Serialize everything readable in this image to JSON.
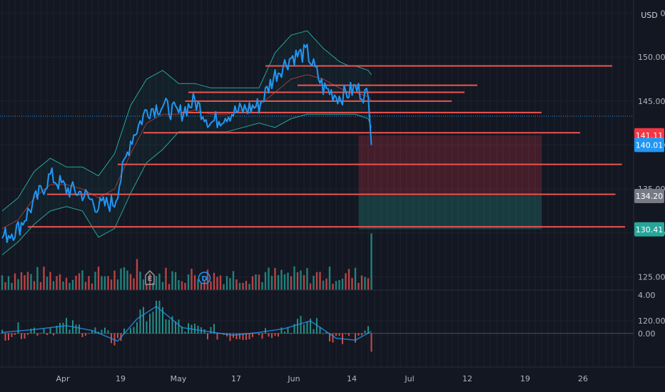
{
  "price_axis": {
    "currency": "USD",
    "ticks": [
      "155.00",
      "150.00",
      "145.00",
      "140.00",
      "135.00",
      "130.00",
      "125.00",
      "120.00"
    ],
    "tick_values": [
      155,
      150,
      145,
      140,
      135,
      130,
      125,
      120
    ]
  },
  "oscillator_axis": {
    "ticks": [
      "4.00",
      "0.00"
    ],
    "tick_values": [
      4,
      0
    ]
  },
  "time_axis": {
    "labels": [
      "Apr",
      "19",
      "May",
      "17",
      "Jun",
      "14",
      "Jul",
      "12",
      "19",
      "26"
    ],
    "label_days": [
      6,
      24,
      42,
      60,
      78,
      96,
      114,
      132,
      150,
      168
    ]
  },
  "price_tags": [
    {
      "label": "141.11",
      "value": 141.11,
      "color": "#f23645",
      "role": "stop-loss"
    },
    {
      "label": "140.01",
      "value": 140.01,
      "color": "#2196f3",
      "role": "last-price"
    },
    {
      "label": "134.20",
      "value": 134.2,
      "color": "#787b86",
      "role": "entry"
    },
    {
      "label": "130.41",
      "value": 130.41,
      "color": "#26a69a",
      "role": "target"
    }
  ],
  "events": [
    {
      "letter": "E",
      "label": "Earnings",
      "day": 46,
      "color": "#9598a1"
    },
    {
      "letter": "D",
      "label": "Dividend",
      "day": 63,
      "color": "#2196f3"
    }
  ],
  "colors": {
    "price_line": "#2196f3",
    "band": "#26a69a",
    "mid_band": "#ef5350",
    "level_line": "#ef5350",
    "volume_up": "#26a69a",
    "volume_down": "#ef5350",
    "background": "#131722"
  },
  "chart_data": {
    "type": "line",
    "ticker_currency": "USD",
    "x_unit": "trading day index (Mar 2021 – Jul 2021)",
    "price_series": {
      "name": "",
      "x": [
        0,
        5,
        10,
        15,
        20,
        25,
        30,
        35,
        40,
        45,
        50,
        55,
        60,
        65,
        70,
        75,
        80,
        85,
        90,
        95,
        100,
        105,
        108,
        110,
        114,
        115
      ],
      "y": [
        129.5,
        130.5,
        133.5,
        136.5,
        135.0,
        134.5,
        133.0,
        133.5,
        140.5,
        144.0,
        144.5,
        143.5,
        145.0,
        142.5,
        143.5,
        144.0,
        144.5,
        148.0,
        150.0,
        150.5,
        146.5,
        145.5,
        146.0,
        146.5,
        145.5,
        140.01
      ]
    },
    "bollinger": {
      "upper": [
        132.5,
        134.0,
        137.0,
        138.5,
        137.5,
        137.5,
        136.5,
        139.0,
        144.5,
        147.5,
        148.5,
        147.0,
        147.0,
        146.5,
        146.5,
        146.5,
        146.5,
        150.5,
        152.5,
        153.0,
        151.0,
        149.5,
        149.0,
        149.0,
        148.5,
        148.0
      ],
      "middle": [
        130.5,
        131.5,
        134.0,
        135.5,
        135.5,
        135.0,
        134.0,
        135.0,
        139.0,
        142.5,
        143.5,
        143.5,
        144.0,
        143.5,
        143.5,
        144.0,
        144.5,
        146.0,
        147.5,
        148.0,
        147.5,
        146.5,
        146.0,
        146.0,
        145.5,
        145.0
      ],
      "lower": [
        127.5,
        129.0,
        131.0,
        132.5,
        133.0,
        132.5,
        129.5,
        130.5,
        134.5,
        138.0,
        139.5,
        141.5,
        141.5,
        141.5,
        141.5,
        142.0,
        142.5,
        142.0,
        143.0,
        143.5,
        143.5,
        143.5,
        143.5,
        143.5,
        143.0,
        142.0
      ]
    },
    "horizontal_levels": [
      {
        "value": 149.0,
        "x_start": 82,
        "x_end": 190
      },
      {
        "value": 146.8,
        "x_start": 92,
        "x_end": 148
      },
      {
        "value": 146.0,
        "x_start": 58,
        "x_end": 144
      },
      {
        "value": 145.0,
        "x_start": 57,
        "x_end": 140
      },
      {
        "value": 143.7,
        "x_start": 56,
        "x_end": 168
      },
      {
        "value": 141.4,
        "x_start": 44,
        "x_end": 180
      },
      {
        "value": 137.8,
        "x_start": 36,
        "x_end": 193
      },
      {
        "value": 134.4,
        "x_start": 14,
        "x_end": 191
      },
      {
        "value": 130.7,
        "x_start": 8,
        "x_end": 194
      }
    ],
    "position": {
      "x_start": 111,
      "x_end": 168,
      "stop": 141.11,
      "entry": 134.2,
      "target": 130.41
    },
    "volume_note": "volume histogram at bottom of price pane (no scale shown)",
    "oscillator": {
      "name": "",
      "ylim": [
        -3.5,
        4.5
      ],
      "line_x": [
        0,
        10,
        20,
        28,
        36,
        42,
        48,
        56,
        64,
        72,
        80,
        88,
        96,
        104,
        110,
        115
      ],
      "line_y": [
        0.1,
        0.4,
        0.8,
        0.3,
        -0.8,
        1.5,
        2.8,
        0.6,
        0.2,
        -0.2,
        0.1,
        0.5,
        1.3,
        -0.5,
        -0.7,
        0.2
      ]
    },
    "ylim": [
      123.5,
      156.5
    ],
    "xlim": [
      0,
      194
    ]
  }
}
